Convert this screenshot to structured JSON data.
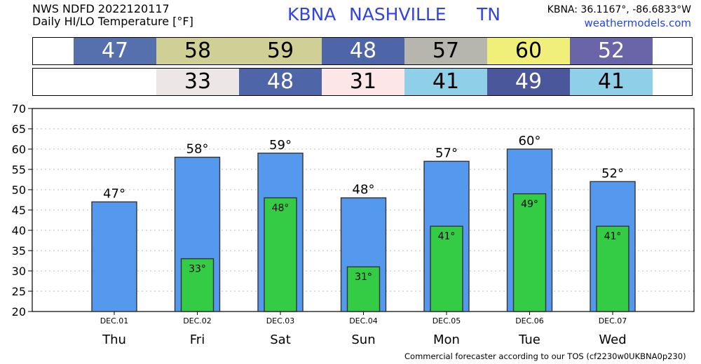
{
  "header": {
    "title_line1": "NWS NDFD 2022120117",
    "title_line2": "Daily HI/LO Temperature [°F]",
    "station": "KBNA",
    "city": "NASHVILLE",
    "state": "TN",
    "coords": "KBNA: 36.1167°, -86.6833°W",
    "site": "weathermodels.com"
  },
  "hi_strip": [
    {
      "label": "47",
      "color": "#5570ad"
    },
    {
      "label": "58",
      "color": "#cfcf96"
    },
    {
      "label": "59",
      "color": "#cfcf96"
    },
    {
      "label": "48",
      "color": "#4e66a8"
    },
    {
      "label": "57",
      "color": "#b7b6ae"
    },
    {
      "label": "60",
      "color": "#f0ef7a"
    },
    {
      "label": "52",
      "color": "#6a65a8"
    }
  ],
  "lo_strip": [
    {
      "label": "",
      "color": "#ffffff"
    },
    {
      "label": "33",
      "color": "#ece6e6"
    },
    {
      "label": "48",
      "color": "#4e66a8"
    },
    {
      "label": "31",
      "color": "#fde6e8"
    },
    {
      "label": "41",
      "color": "#90cfe8"
    },
    {
      "label": "49",
      "color": "#4b579b"
    },
    {
      "label": "41",
      "color": "#90cfe8"
    }
  ],
  "chart_data": {
    "type": "bar",
    "categories": [
      "DEC.01",
      "DEC.02",
      "DEC.03",
      "DEC.04",
      "DEC.05",
      "DEC.06",
      "DEC.07"
    ],
    "days": [
      "Thu",
      "Fri",
      "Sat",
      "Sun",
      "Mon",
      "Tue",
      "Wed"
    ],
    "series": [
      {
        "color": "#5599ee",
        "values": [
          47,
          58,
          59,
          48,
          57,
          60,
          52
        ]
      },
      {
        "color": "#33cc44",
        "values": [
          null,
          33,
          48,
          31,
          41,
          49,
          41
        ]
      }
    ],
    "hi_labels": [
      "47°",
      "58°",
      "59°",
      "48°",
      "57°",
      "60°",
      "52°"
    ],
    "lo_labels": [
      "",
      "33°",
      "48°",
      "31°",
      "41°",
      "49°",
      "41°"
    ],
    "ylim": [
      20,
      70
    ],
    "yticks": [
      "20",
      "25",
      "30",
      "35",
      "40",
      "45",
      "50",
      "55",
      "60",
      "65",
      "70"
    ],
    "grid": true
  },
  "footer": "Commercial forecaster according to our TOS (cf2230w0UKBNA0p230)"
}
